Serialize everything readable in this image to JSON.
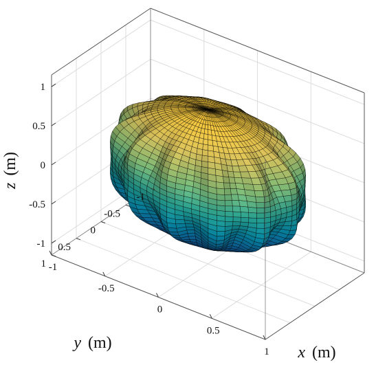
{
  "chart_data": {
    "type": "surface3d",
    "title": "",
    "xlabel": {
      "var": "x",
      "unit": "(m)"
    },
    "ylabel": {
      "var": "y",
      "unit": "(m)"
    },
    "zlabel": {
      "var": "z",
      "unit": "(m)"
    },
    "xlim": [
      -1,
      1
    ],
    "ylim": [
      -1,
      1
    ],
    "zlim": [
      -1.15,
      1.15
    ],
    "xticks": [
      -1,
      -0.5,
      0,
      0.5,
      1
    ],
    "yticks": [
      -1,
      -0.5,
      0,
      0.5,
      1
    ],
    "zticks": [
      -1,
      -0.5,
      0,
      0.5,
      1
    ],
    "xtick_labels": [
      "-1",
      "-0.5",
      "0",
      "0.5",
      "1"
    ],
    "ytick_labels": [
      "-1",
      "-0.5",
      "0",
      "0.5",
      "1"
    ],
    "ztick_labels": [
      "-1",
      "-0.5",
      "0",
      "0.5",
      "1"
    ],
    "surface": {
      "description_shape": "bumpy sphere",
      "base_radius": 0.82,
      "lobe_amplitude": 0.1,
      "azimuthal_lobes": 12,
      "polar_lobes": 6,
      "colormap": "parula",
      "colormap_stops": [
        "#352a87",
        "#0f5cdd",
        "#1481d6",
        "#06a4ca",
        "#2eb7a4",
        "#87bf77",
        "#d1bb59",
        "#fec832",
        "#f9fb0e"
      ],
      "color_by": "z",
      "edge_color": "#000000"
    },
    "grid": true,
    "box": true
  }
}
